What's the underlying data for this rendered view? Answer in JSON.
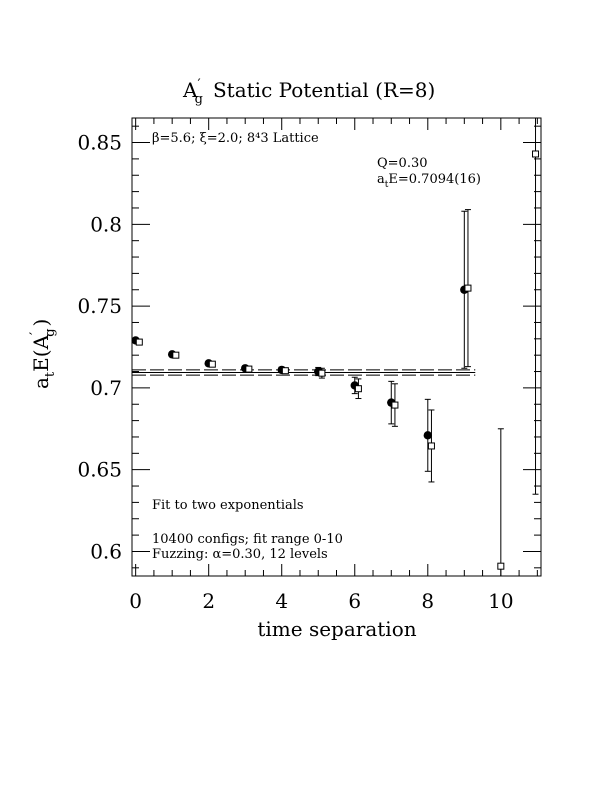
{
  "chart_data": {
    "type": "scatter",
    "title_main": "A",
    "title_prime": "′",
    "title_sub": "g",
    "title_rest": "Static Potential (R=8)",
    "xlabel": "time separation",
    "ylabel_text": "a",
    "ylabel_sub_t": "t",
    "ylabel_mid": "E(A",
    "ylabel_prime": "′",
    "ylabel_sub_g": "g",
    "ylabel_end": ")",
    "xlim": [
      -0.1,
      11.1
    ],
    "ylim": [
      0.585,
      0.865
    ],
    "x_ticks": [
      0,
      2,
      4,
      6,
      8,
      10
    ],
    "x_tick_labels": [
      "0",
      "2",
      "4",
      "6",
      "8",
      "10"
    ],
    "y_ticks": [
      0.6,
      0.65,
      0.7,
      0.75,
      0.8,
      0.85
    ],
    "y_tick_labels": [
      "0.6",
      "0.65",
      "0.7",
      "0.75",
      "0.8",
      "0.85"
    ],
    "annotations": {
      "lattice": "β=5.6; ξ=2.0; 8⁴3 Lattice",
      "q": "Q=0.30",
      "energy_prefix": "a",
      "energy_sub": "t",
      "energy_rest": "E=0.7094(16)",
      "fit_type": "Fit to two exponentials",
      "configs": "10400 configs; fit range 0-10",
      "fuzzing": "Fuzzing: α=0.30, 12 levels"
    },
    "fit": {
      "value": 0.7094,
      "error": 0.0016,
      "x_range": [
        -0.1,
        9.3
      ]
    },
    "series": [
      {
        "marker": "filled-circle",
        "points": [
          {
            "x": 0,
            "y": 0.729,
            "err": 0.0007
          },
          {
            "x": 1,
            "y": 0.7205,
            "err": 0.0009
          },
          {
            "x": 2,
            "y": 0.715,
            "err": 0.001
          },
          {
            "x": 3,
            "y": 0.712,
            "err": 0.0013
          },
          {
            "x": 4,
            "y": 0.711,
            "err": 0.0017
          },
          {
            "x": 5,
            "y": 0.71,
            "err": 0.0025
          },
          {
            "x": 6,
            "y": 0.7015,
            "err": 0.005
          },
          {
            "x": 7,
            "y": 0.691,
            "err": 0.013
          },
          {
            "x": 8,
            "y": 0.671,
            "err": 0.022
          },
          {
            "x": 9,
            "y": 0.76,
            "err": 0.048
          }
        ]
      },
      {
        "marker": "open-square",
        "points": [
          {
            "x": 0.1,
            "y": 0.728,
            "err": 0.0007
          },
          {
            "x": 1.1,
            "y": 0.72,
            "err": 0.0009
          },
          {
            "x": 2.1,
            "y": 0.7145,
            "err": 0.001
          },
          {
            "x": 3.1,
            "y": 0.7115,
            "err": 0.0013
          },
          {
            "x": 4.1,
            "y": 0.7105,
            "err": 0.0017
          },
          {
            "x": 5.1,
            "y": 0.709,
            "err": 0.003
          },
          {
            "x": 6.1,
            "y": 0.6995,
            "err": 0.006
          },
          {
            "x": 7.1,
            "y": 0.6895,
            "err": 0.013
          },
          {
            "x": 8.1,
            "y": 0.6645,
            "err": 0.022
          },
          {
            "x": 9.1,
            "y": 0.761,
            "err": 0.048
          },
          {
            "x": 10.0,
            "y": 0.591,
            "err": 0.084
          },
          {
            "x": 10.95,
            "y": 0.843,
            "err": 0.208
          }
        ]
      }
    ]
  }
}
